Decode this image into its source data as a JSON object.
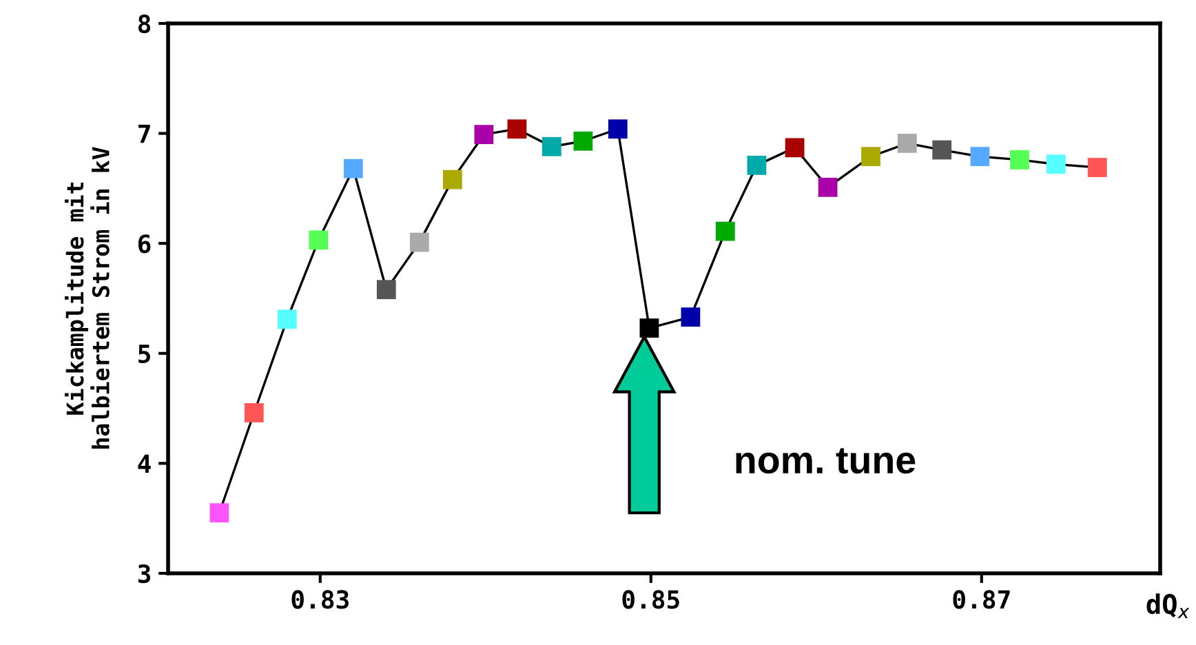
{
  "chart_data": {
    "type": "line",
    "xlabel": "dQ$_{x}$",
    "ylabel": "Kickamplitude mit\nhalbiertem Strom in kV",
    "x": [
      0.8239,
      0.826,
      0.828,
      0.8299,
      0.832,
      0.834,
      0.836,
      0.838,
      0.8399,
      0.8419,
      0.844,
      0.8459,
      0.848,
      0.8499,
      0.8524,
      0.8545,
      0.8564,
      0.8587,
      0.8607,
      0.8633,
      0.8655,
      0.8676,
      0.8699,
      0.8723,
      0.8745,
      0.877
    ],
    "series": [
      {
        "color": "#000000",
        "values": [
          3.55,
          4.46,
          5.31,
          6.03,
          6.68,
          5.58,
          6.01,
          6.58,
          6.99,
          7.04,
          6.88,
          6.93,
          7.04,
          5.23,
          5.33,
          6.11,
          6.71,
          6.87,
          6.51,
          6.79,
          6.91,
          6.85,
          6.79,
          6.76,
          6.72,
          6.69
        ],
        "colors": [
          "#ff55ff",
          "#ff5555",
          "#55ffff",
          "#55ff55",
          "#55aaff",
          "#555555",
          "#aaaaaa",
          "#aaaa00",
          "#aa00aa",
          "#aa0000",
          "#00aaaa",
          "#00aa00",
          "#0000aa",
          "#000000",
          "#0000aa",
          "#00aa00",
          "#00aaaa",
          "#aa0000",
          "#aa00aa",
          "#aaaa00",
          "#aaaaaa",
          "#555555",
          "#55aaff",
          "#55ff55",
          "#55ffff",
          "#ff5555"
        ]
      }
    ],
    "marker": "square",
    "line_style": "solid",
    "grid": false,
    "legend": false,
    "xlim": [
      0.8208,
      0.8808
    ],
    "ylim": [
      3,
      8
    ],
    "xticks": [
      0.83,
      0.85,
      0.87
    ],
    "yticks": [
      3,
      4,
      5,
      6,
      7,
      8
    ],
    "annotations": [
      "nom. tune"
    ]
  }
}
